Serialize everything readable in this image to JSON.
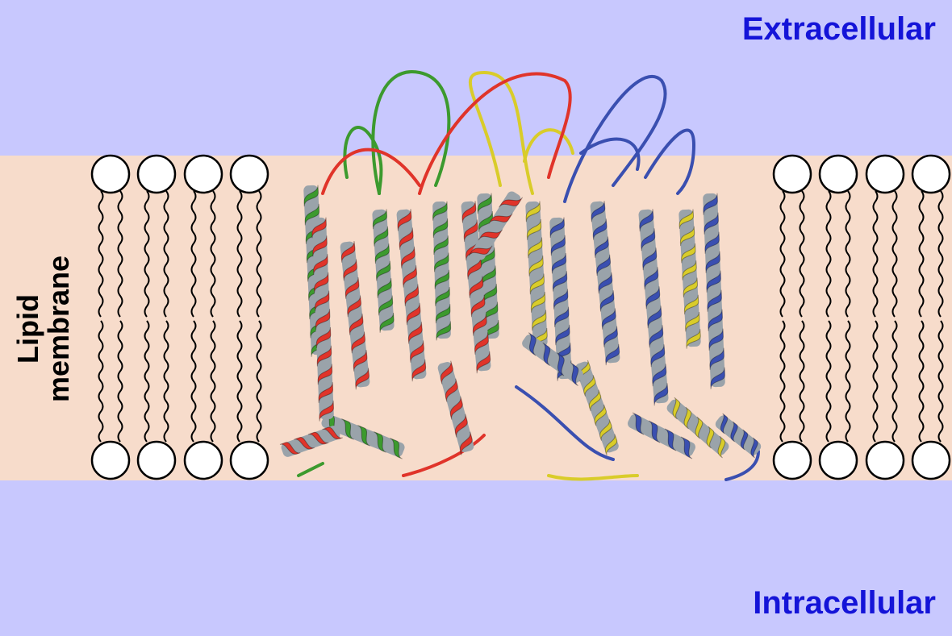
{
  "regions": {
    "extracellular": {
      "label": "Extracellular",
      "color": "#c8c8fe"
    },
    "membrane": {
      "label_line1": "Lipid",
      "label_line2": "membrane",
      "color": "#f7dccb"
    },
    "intracellular": {
      "label": "Intracellular",
      "color": "#c8c8fe"
    }
  },
  "colors": {
    "label_text": "#1414d8",
    "chain_green": "#3c9a2e",
    "chain_red": "#e0342a",
    "chain_yellow": "#d9cc2a",
    "chain_blue": "#3a4fb0",
    "helix_underside": "#9aa3aa"
  },
  "lipid_groups": [
    "left-lipid-bilayer",
    "right-lipid-bilayer"
  ]
}
